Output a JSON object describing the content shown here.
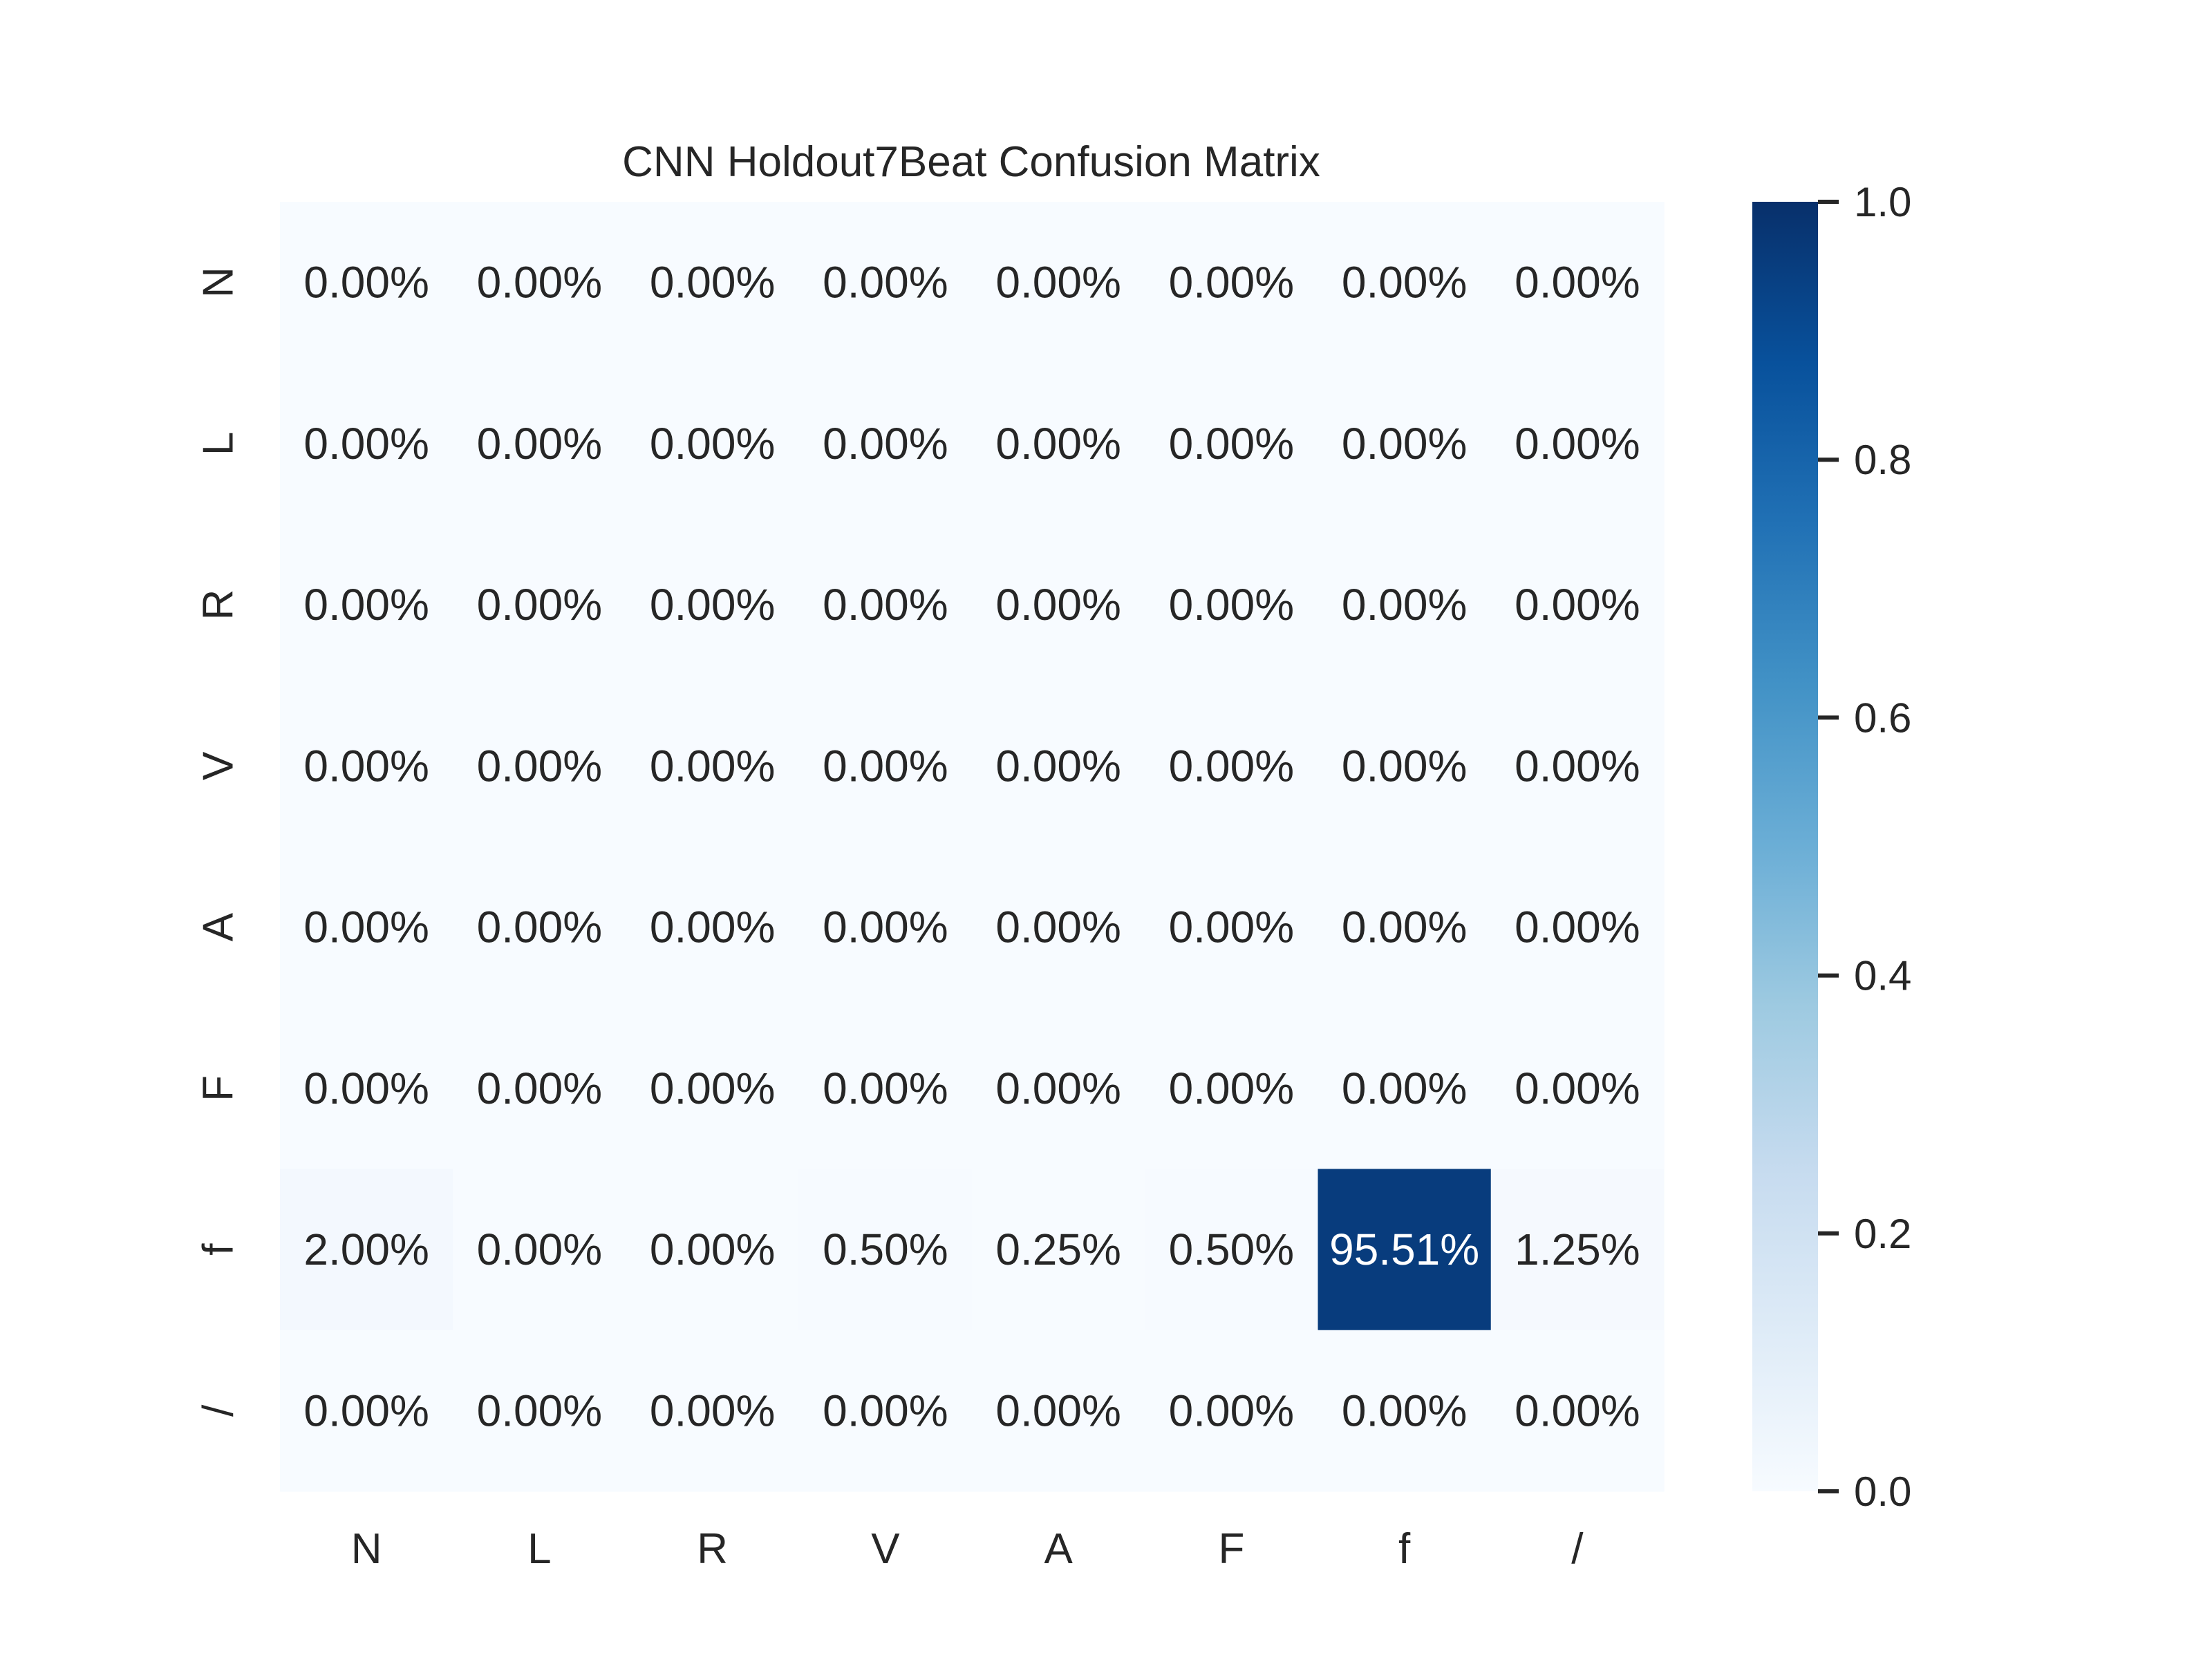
{
  "chart_data": {
    "type": "heatmap",
    "title": "CNN Holdout7Beat Confusion Matrix",
    "x_categories": [
      "N",
      "L",
      "R",
      "V",
      "A",
      "F",
      "f",
      "/"
    ],
    "y_categories": [
      "N",
      "L",
      "R",
      "V",
      "A",
      "F",
      "f",
      "/"
    ],
    "values": [
      [
        0,
        0,
        0,
        0,
        0,
        0,
        0,
        0
      ],
      [
        0,
        0,
        0,
        0,
        0,
        0,
        0,
        0
      ],
      [
        0,
        0,
        0,
        0,
        0,
        0,
        0,
        0
      ],
      [
        0,
        0,
        0,
        0,
        0,
        0,
        0,
        0
      ],
      [
        0,
        0,
        0,
        0,
        0,
        0,
        0,
        0
      ],
      [
        0,
        0,
        0,
        0,
        0,
        0,
        0,
        0
      ],
      [
        0.02,
        0,
        0,
        0.005,
        0.0025,
        0.005,
        0.9551,
        0.0125
      ],
      [
        0,
        0,
        0,
        0,
        0,
        0,
        0,
        0
      ]
    ],
    "cell_labels": [
      [
        "0.00%",
        "0.00%",
        "0.00%",
        "0.00%",
        "0.00%",
        "0.00%",
        "0.00%",
        "0.00%"
      ],
      [
        "0.00%",
        "0.00%",
        "0.00%",
        "0.00%",
        "0.00%",
        "0.00%",
        "0.00%",
        "0.00%"
      ],
      [
        "0.00%",
        "0.00%",
        "0.00%",
        "0.00%",
        "0.00%",
        "0.00%",
        "0.00%",
        "0.00%"
      ],
      [
        "0.00%",
        "0.00%",
        "0.00%",
        "0.00%",
        "0.00%",
        "0.00%",
        "0.00%",
        "0.00%"
      ],
      [
        "0.00%",
        "0.00%",
        "0.00%",
        "0.00%",
        "0.00%",
        "0.00%",
        "0.00%",
        "0.00%"
      ],
      [
        "0.00%",
        "0.00%",
        "0.00%",
        "0.00%",
        "0.00%",
        "0.00%",
        "0.00%",
        "0.00%"
      ],
      [
        "2.00%",
        "0.00%",
        "0.00%",
        "0.50%",
        "0.25%",
        "0.50%",
        "95.51%",
        "1.25%"
      ],
      [
        "0.00%",
        "0.00%",
        "0.00%",
        "0.00%",
        "0.00%",
        "0.00%",
        "0.00%",
        "0.00%"
      ]
    ],
    "colorbar": {
      "range": [
        0,
        1
      ],
      "ticks": [
        0.0,
        0.2,
        0.4,
        0.6,
        0.8,
        1.0
      ],
      "tick_labels": [
        "0.0",
        "0.2",
        "0.4",
        "0.6",
        "0.8",
        "1.0"
      ],
      "colormap": "Blues",
      "colormap_stops": [
        "#f7fbff",
        "#deebf7",
        "#c6dbef",
        "#9ecae1",
        "#6baed6",
        "#4292c6",
        "#2171b5",
        "#08519c",
        "#08306b"
      ]
    },
    "grid": false
  }
}
